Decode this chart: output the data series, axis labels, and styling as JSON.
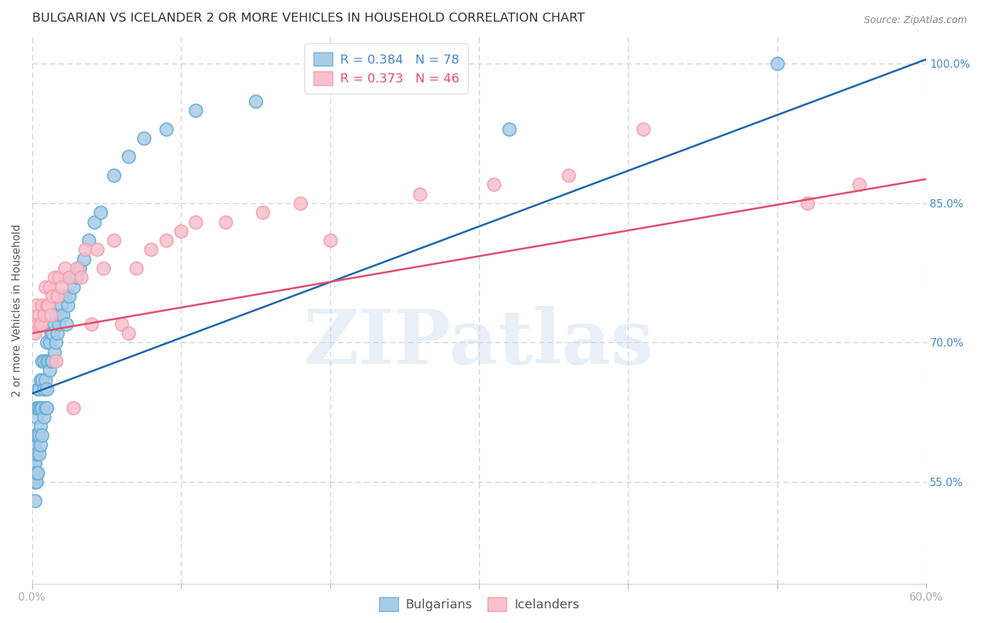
{
  "title": "BULGARIAN VS ICELANDER 2 OR MORE VEHICLES IN HOUSEHOLD CORRELATION CHART",
  "source": "Source: ZipAtlas.com",
  "ylabel": "2 or more Vehicles in Household",
  "xlim": [
    0.0,
    0.6
  ],
  "ylim": [
    0.44,
    1.03
  ],
  "xticks": [
    0.0,
    0.1,
    0.2,
    0.3,
    0.4,
    0.5,
    0.6
  ],
  "yticks": [
    0.55,
    0.7,
    0.85,
    1.0
  ],
  "yticklabels": [
    "55.0%",
    "70.0%",
    "85.0%",
    "100.0%"
  ],
  "blue_fill": "#a8cce8",
  "blue_edge": "#6aaed6",
  "pink_fill": "#f7c0cc",
  "pink_edge": "#f4a0b0",
  "blue_line_color": "#2166ac",
  "pink_line_color": "#e05070",
  "legend_blue_r": "R = 0.384",
  "legend_blue_n": "N = 78",
  "legend_pink_r": "R = 0.373",
  "legend_pink_n": "N = 46",
  "watermark": "ZIPatlas",
  "title_fontsize": 13,
  "axis_label_fontsize": 11,
  "tick_fontsize": 11,
  "legend_fontsize": 13,
  "source_fontsize": 10,
  "blue_line_x0": 0.0,
  "blue_line_y0": 0.645,
  "blue_line_x1": 0.6,
  "blue_line_y1": 1.005,
  "pink_line_x0": 0.0,
  "pink_line_y0": 0.71,
  "pink_line_x1": 0.6,
  "pink_line_y1": 0.876,
  "grid_color": "#cccccc",
  "tick_color": "#4488cc",
  "title_color": "#333333",
  "blue_scatter_x": [
    0.001,
    0.001,
    0.001,
    0.001,
    0.001,
    0.002,
    0.002,
    0.002,
    0.002,
    0.002,
    0.002,
    0.003,
    0.003,
    0.003,
    0.003,
    0.003,
    0.003,
    0.004,
    0.004,
    0.004,
    0.004,
    0.005,
    0.005,
    0.005,
    0.005,
    0.006,
    0.006,
    0.006,
    0.006,
    0.007,
    0.007,
    0.007,
    0.007,
    0.008,
    0.008,
    0.008,
    0.009,
    0.009,
    0.01,
    0.01,
    0.01,
    0.01,
    0.011,
    0.012,
    0.012,
    0.013,
    0.013,
    0.014,
    0.014,
    0.015,
    0.015,
    0.016,
    0.016,
    0.017,
    0.018,
    0.019,
    0.02,
    0.021,
    0.022,
    0.023,
    0.024,
    0.025,
    0.026,
    0.028,
    0.03,
    0.032,
    0.035,
    0.038,
    0.042,
    0.046,
    0.055,
    0.065,
    0.075,
    0.09,
    0.11,
    0.15,
    0.32,
    0.5
  ],
  "blue_scatter_y": [
    0.55,
    0.56,
    0.57,
    0.58,
    0.59,
    0.53,
    0.55,
    0.56,
    0.57,
    0.59,
    0.6,
    0.55,
    0.56,
    0.58,
    0.6,
    0.62,
    0.63,
    0.56,
    0.6,
    0.63,
    0.65,
    0.58,
    0.6,
    0.63,
    0.65,
    0.59,
    0.61,
    0.63,
    0.66,
    0.6,
    0.63,
    0.66,
    0.68,
    0.62,
    0.65,
    0.68,
    0.63,
    0.66,
    0.63,
    0.65,
    0.68,
    0.7,
    0.68,
    0.67,
    0.7,
    0.68,
    0.71,
    0.68,
    0.71,
    0.69,
    0.72,
    0.7,
    0.73,
    0.71,
    0.72,
    0.73,
    0.74,
    0.73,
    0.75,
    0.72,
    0.74,
    0.75,
    0.77,
    0.76,
    0.77,
    0.78,
    0.79,
    0.81,
    0.83,
    0.84,
    0.88,
    0.9,
    0.92,
    0.93,
    0.95,
    0.96,
    0.93,
    1.0
  ],
  "pink_scatter_x": [
    0.001,
    0.002,
    0.003,
    0.004,
    0.005,
    0.006,
    0.007,
    0.008,
    0.009,
    0.01,
    0.011,
    0.012,
    0.013,
    0.014,
    0.015,
    0.016,
    0.017,
    0.018,
    0.02,
    0.022,
    0.025,
    0.028,
    0.03,
    0.033,
    0.036,
    0.04,
    0.044,
    0.048,
    0.055,
    0.06,
    0.065,
    0.07,
    0.08,
    0.09,
    0.1,
    0.11,
    0.13,
    0.155,
    0.18,
    0.2,
    0.26,
    0.31,
    0.36,
    0.41,
    0.52,
    0.555
  ],
  "pink_scatter_y": [
    0.72,
    0.71,
    0.74,
    0.72,
    0.73,
    0.72,
    0.74,
    0.73,
    0.76,
    0.74,
    0.74,
    0.76,
    0.73,
    0.75,
    0.77,
    0.68,
    0.75,
    0.77,
    0.76,
    0.78,
    0.77,
    0.63,
    0.78,
    0.77,
    0.8,
    0.72,
    0.8,
    0.78,
    0.81,
    0.72,
    0.71,
    0.78,
    0.8,
    0.81,
    0.82,
    0.83,
    0.83,
    0.84,
    0.85,
    0.81,
    0.86,
    0.87,
    0.88,
    0.93,
    0.85,
    0.87
  ]
}
